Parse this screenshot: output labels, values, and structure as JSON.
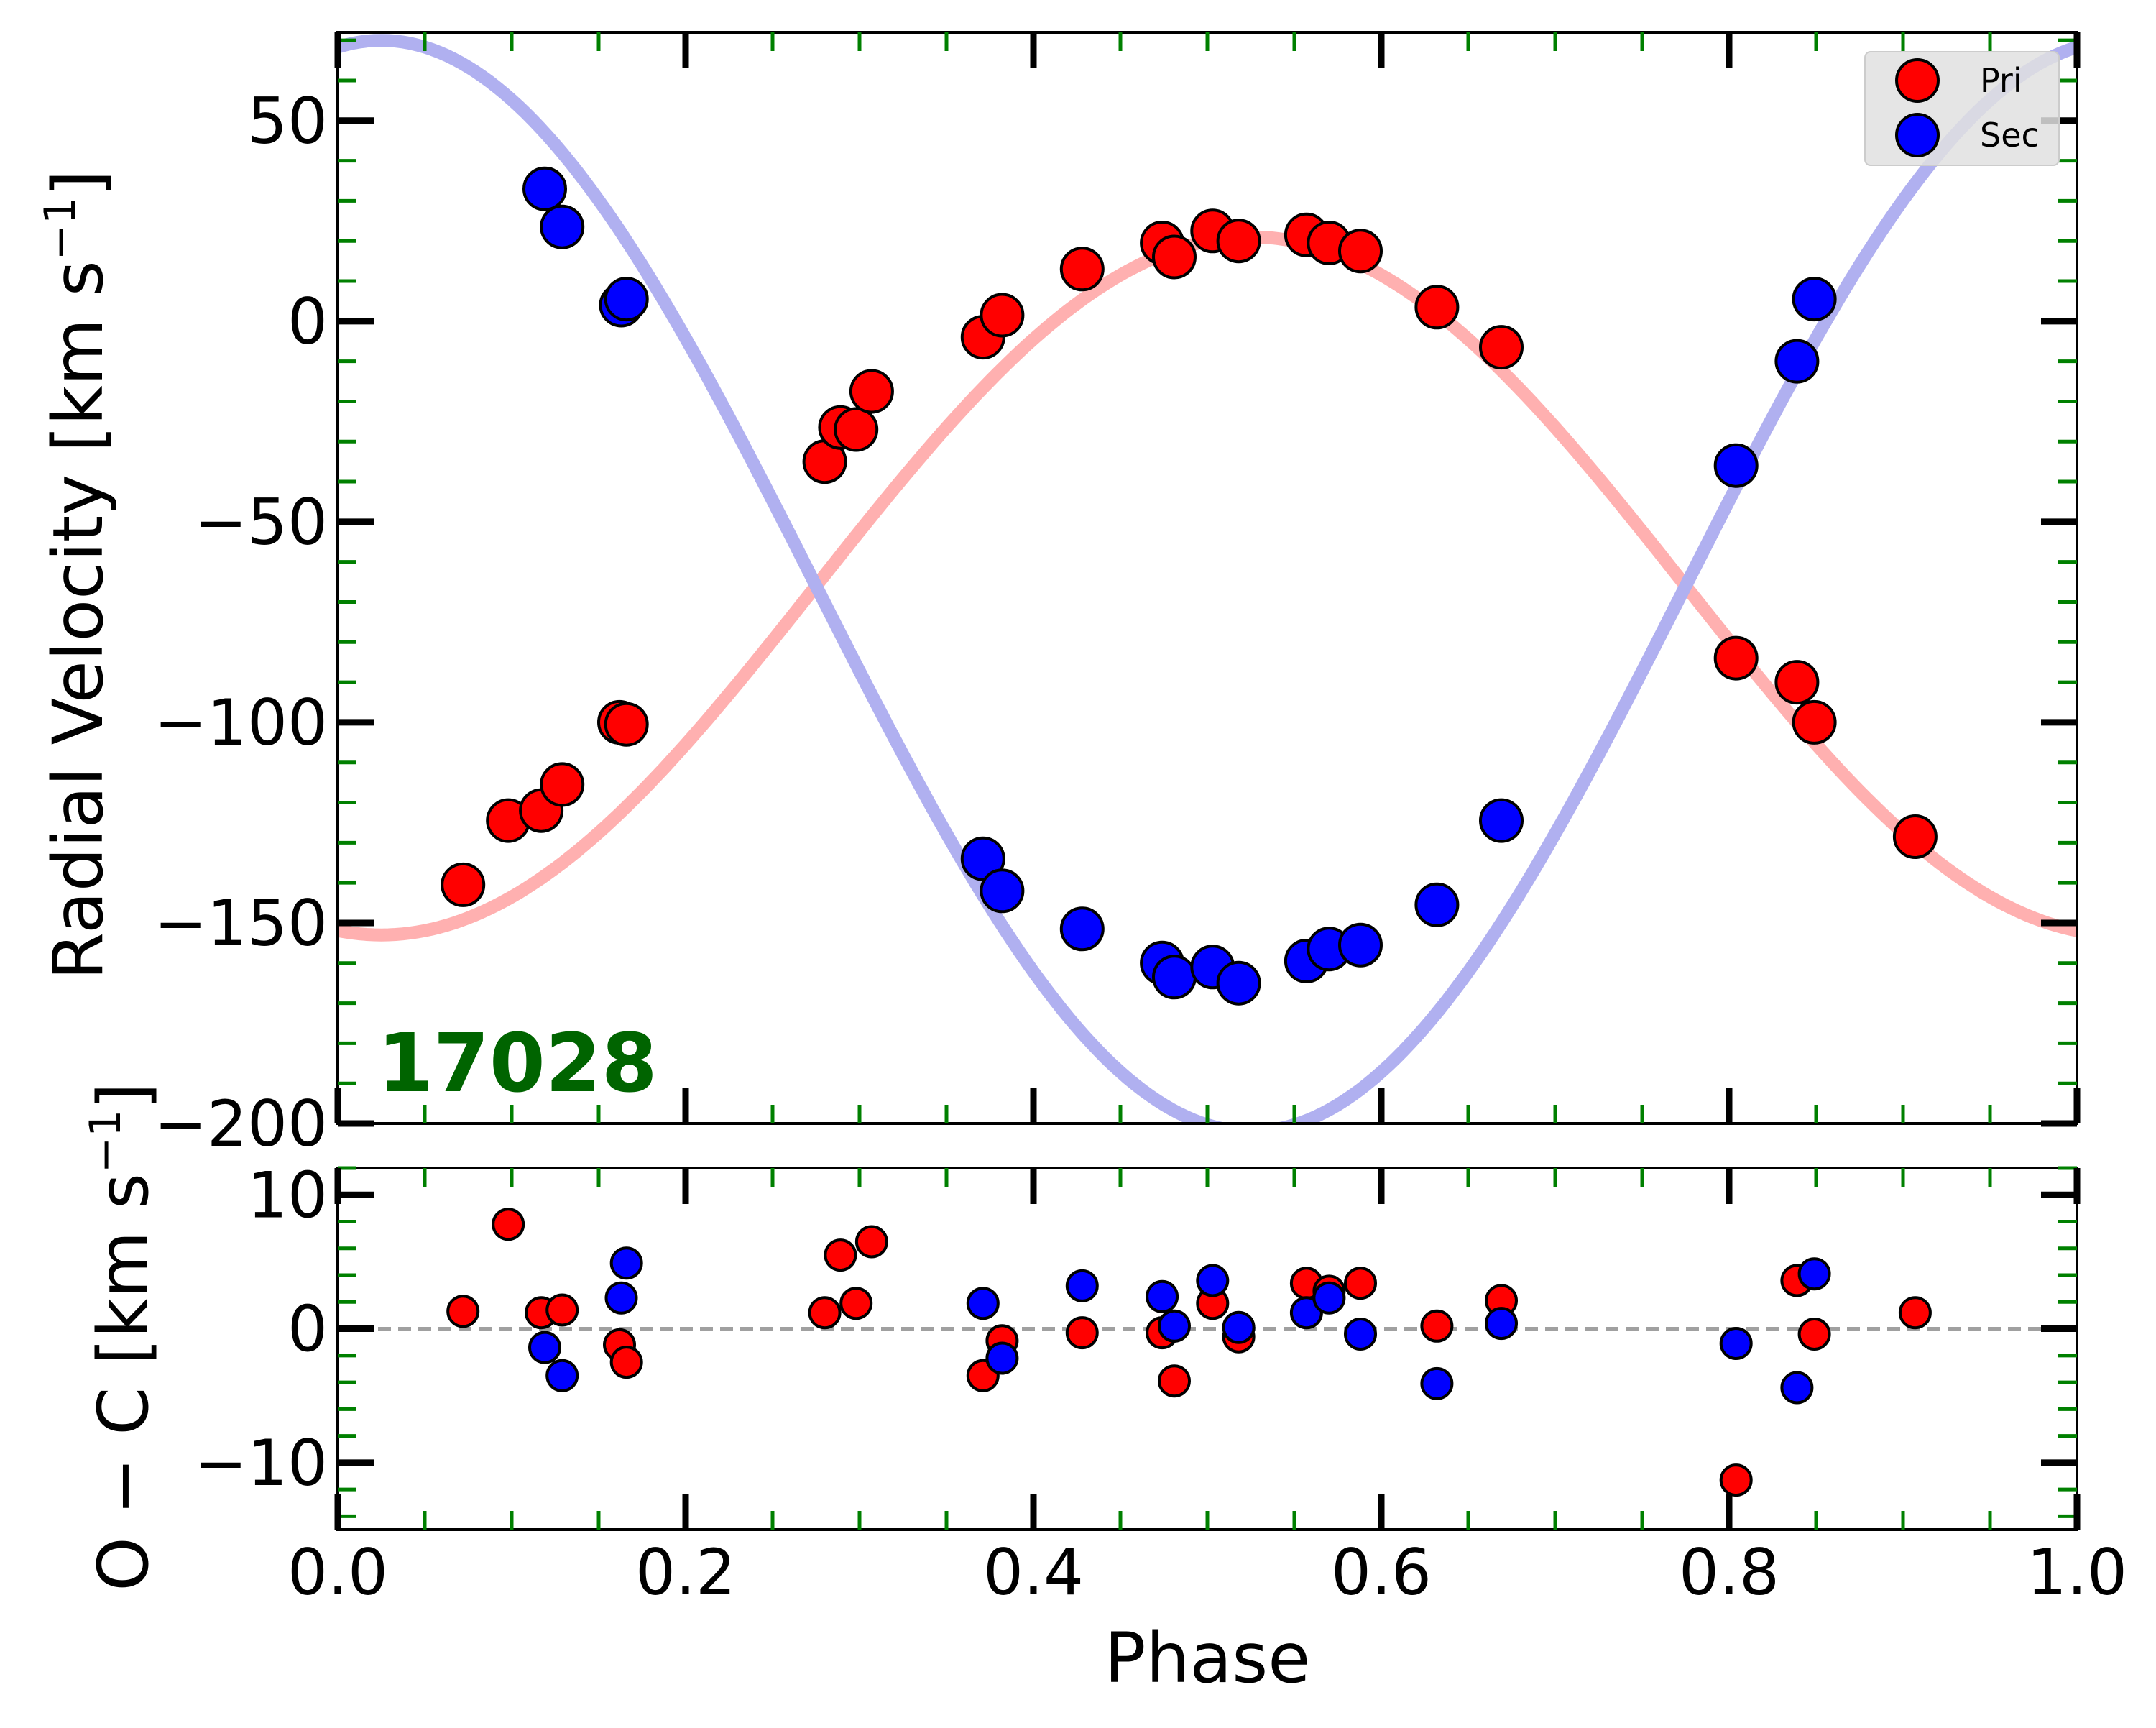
{
  "chart_data": {
    "type": "scatter",
    "system_id": "17028",
    "colors": {
      "primary": "#ff0000",
      "secondary": "#0000ff",
      "primary_curve": "#ffb0b0",
      "secondary_curve": "#b0b0f0",
      "minor_tick": "#008000",
      "label": "#006400",
      "zero_line": "#a0a0a0",
      "legend_bg": "#e0e0e0"
    },
    "legend": {
      "position": "top-right",
      "entries": [
        {
          "label": "Pri",
          "color": "#ff0000"
        },
        {
          "label": "Sec",
          "color": "#0000ff"
        }
      ]
    },
    "x": {
      "label": "Phase",
      "lim": [
        0.0,
        1.0
      ],
      "ticks": [
        0.0,
        0.2,
        0.4,
        0.6,
        0.8,
        1.0
      ],
      "tick_labels": [
        "0.0",
        "0.2",
        "0.4",
        "0.6",
        "0.8",
        "1.0"
      ]
    },
    "rv_panel": {
      "ylabel_text": "Radial Velocity [km s",
      "ylabel_sup": "−1",
      "ylabel_close": "]",
      "ylim": [
        -200,
        72
      ],
      "ticks": [
        50,
        0,
        -50,
        -100,
        -150,
        -200
      ],
      "tick_labels": [
        "50",
        "0",
        "−50",
        "−100",
        "−150",
        "−200"
      ],
      "model": {
        "gamma": -66,
        "k_primary": 87,
        "k_secondary": 136,
        "phase_of_max_primary": 0.525,
        "curve_samples": 240
      },
      "series": [
        {
          "name": "Pri",
          "color": "#ff0000",
          "points": [
            [
              0.072,
              -140.5
            ],
            [
              0.098,
              -124.5
            ],
            [
              0.117,
              -122.0
            ],
            [
              0.129,
              -115.5
            ],
            [
              0.162,
              -100.0
            ],
            [
              0.166,
              -100.5
            ],
            [
              0.28,
              -35.0
            ],
            [
              0.289,
              -26.5
            ],
            [
              0.298,
              -27.0
            ],
            [
              0.307,
              -17.5
            ],
            [
              0.371,
              -4.0
            ],
            [
              0.382,
              1.5
            ],
            [
              0.428,
              13.0
            ],
            [
              0.474,
              19.5
            ],
            [
              0.481,
              16.0
            ],
            [
              0.503,
              22.5
            ],
            [
              0.518,
              20.0
            ],
            [
              0.557,
              21.5
            ],
            [
              0.57,
              19.5
            ],
            [
              0.588,
              17.5
            ],
            [
              0.632,
              3.5
            ],
            [
              0.669,
              -6.5
            ],
            [
              0.804,
              -84.0
            ],
            [
              0.839,
              -90.0
            ],
            [
              0.849,
              -100.0
            ],
            [
              0.907,
              -128.5
            ]
          ]
        },
        {
          "name": "Sec",
          "color": "#0000ff",
          "points": [
            [
              0.119,
              33.0
            ],
            [
              0.129,
              23.5
            ],
            [
              0.163,
              4.0
            ],
            [
              0.166,
              5.5
            ],
            [
              0.371,
              -134.0
            ],
            [
              0.382,
              -142.0
            ],
            [
              0.428,
              -151.5
            ],
            [
              0.474,
              -160.0
            ],
            [
              0.481,
              -163.5
            ],
            [
              0.503,
              -161.0
            ],
            [
              0.518,
              -165.0
            ],
            [
              0.557,
              -159.5
            ],
            [
              0.57,
              -156.5
            ],
            [
              0.588,
              -155.5
            ],
            [
              0.632,
              -145.5
            ],
            [
              0.669,
              -124.5
            ],
            [
              0.804,
              -36.0
            ],
            [
              0.839,
              -10.0
            ],
            [
              0.849,
              5.5
            ]
          ]
        }
      ]
    },
    "oc_panel": {
      "ylabel_text": "O − C [km s",
      "ylabel_sup": "−1",
      "ylabel_close": "]",
      "ylim": [
        -15,
        12
      ],
      "ticks": [
        10,
        0,
        -10
      ],
      "tick_labels": [
        "10",
        "0",
        "−10"
      ],
      "zero_line": 0,
      "series": [
        {
          "name": "Pri",
          "color": "#ff0000",
          "points": [
            [
              0.072,
              1.3
            ],
            [
              0.098,
              7.8
            ],
            [
              0.117,
              1.2
            ],
            [
              0.129,
              1.4
            ],
            [
              0.162,
              -1.2
            ],
            [
              0.166,
              -2.5
            ],
            [
              0.28,
              1.2
            ],
            [
              0.289,
              5.5
            ],
            [
              0.298,
              1.9
            ],
            [
              0.307,
              6.5
            ],
            [
              0.371,
              -3.5
            ],
            [
              0.382,
              -0.9
            ],
            [
              0.428,
              -0.3
            ],
            [
              0.474,
              -0.3
            ],
            [
              0.481,
              -3.9
            ],
            [
              0.503,
              1.9
            ],
            [
              0.518,
              -0.6
            ],
            [
              0.557,
              3.4
            ],
            [
              0.57,
              2.8
            ],
            [
              0.588,
              3.4
            ],
            [
              0.632,
              0.2
            ],
            [
              0.669,
              2.1
            ],
            [
              0.804,
              -11.3
            ],
            [
              0.839,
              3.6
            ],
            [
              0.849,
              -0.4
            ],
            [
              0.907,
              1.2
            ]
          ]
        },
        {
          "name": "Sec",
          "color": "#0000ff",
          "points": [
            [
              0.119,
              -1.4
            ],
            [
              0.129,
              -3.5
            ],
            [
              0.163,
              2.3
            ],
            [
              0.166,
              4.9
            ],
            [
              0.371,
              1.9
            ],
            [
              0.382,
              -2.2
            ],
            [
              0.428,
              3.2
            ],
            [
              0.474,
              2.4
            ],
            [
              0.481,
              0.2
            ],
            [
              0.503,
              3.6
            ],
            [
              0.518,
              0.1
            ],
            [
              0.557,
              1.2
            ],
            [
              0.57,
              2.3
            ],
            [
              0.588,
              -0.4
            ],
            [
              0.632,
              -4.1
            ],
            [
              0.669,
              0.4
            ],
            [
              0.804,
              -1.1
            ],
            [
              0.839,
              -4.4
            ],
            [
              0.849,
              4.1
            ]
          ]
        }
      ]
    }
  }
}
